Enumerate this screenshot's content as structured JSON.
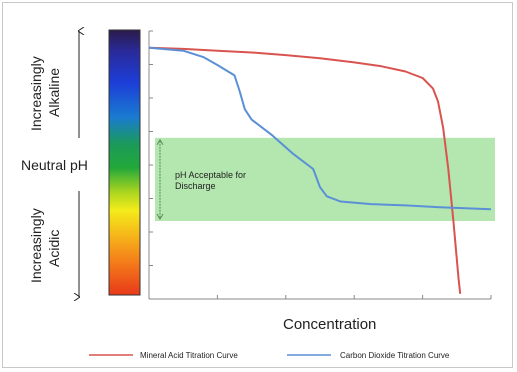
{
  "chart_data": {
    "type": "line",
    "xlabel": "Concentration",
    "ylabel_top": [
      "Increasingly",
      "Alkaline"
    ],
    "ylabel_middle": "Neutral pH",
    "ylabel_bottom": [
      "Increasingly",
      "Acidic"
    ],
    "band_label": [
      "pH Acceptable for",
      "Discharge"
    ],
    "band_range": [
      0.3,
      0.62
    ],
    "ylim": [
      0,
      1
    ],
    "xlim": [
      0,
      1
    ],
    "x_ticks": 6,
    "y_ticks": 9,
    "series": [
      {
        "name": "Mineral Acid Titration Curve",
        "color": "#d9534f",
        "points": [
          [
            0.0,
            0.966
          ],
          [
            0.1,
            0.962
          ],
          [
            0.2,
            0.955
          ],
          [
            0.3,
            0.948
          ],
          [
            0.4,
            0.938
          ],
          [
            0.5,
            0.926
          ],
          [
            0.6,
            0.91
          ],
          [
            0.68,
            0.895
          ],
          [
            0.75,
            0.875
          ],
          [
            0.8,
            0.85
          ],
          [
            0.83,
            0.81
          ],
          [
            0.845,
            0.76
          ],
          [
            0.86,
            0.66
          ],
          [
            0.875,
            0.5
          ],
          [
            0.89,
            0.3
          ],
          [
            0.905,
            0.08
          ],
          [
            0.91,
            0.02
          ]
        ]
      },
      {
        "name": "Carbon Dioxide Titration Curve",
        "color": "#5b8fd6",
        "points": [
          [
            0.0,
            0.966
          ],
          [
            0.1,
            0.955
          ],
          [
            0.16,
            0.93
          ],
          [
            0.2,
            0.9
          ],
          [
            0.25,
            0.86
          ],
          [
            0.265,
            0.8
          ],
          [
            0.28,
            0.73
          ],
          [
            0.3,
            0.69
          ],
          [
            0.36,
            0.63
          ],
          [
            0.42,
            0.56
          ],
          [
            0.48,
            0.5
          ],
          [
            0.5,
            0.43
          ],
          [
            0.52,
            0.395
          ],
          [
            0.56,
            0.375
          ],
          [
            0.65,
            0.365
          ],
          [
            0.75,
            0.36
          ],
          [
            0.85,
            0.353
          ],
          [
            1.0,
            0.345
          ]
        ]
      }
    ]
  }
}
